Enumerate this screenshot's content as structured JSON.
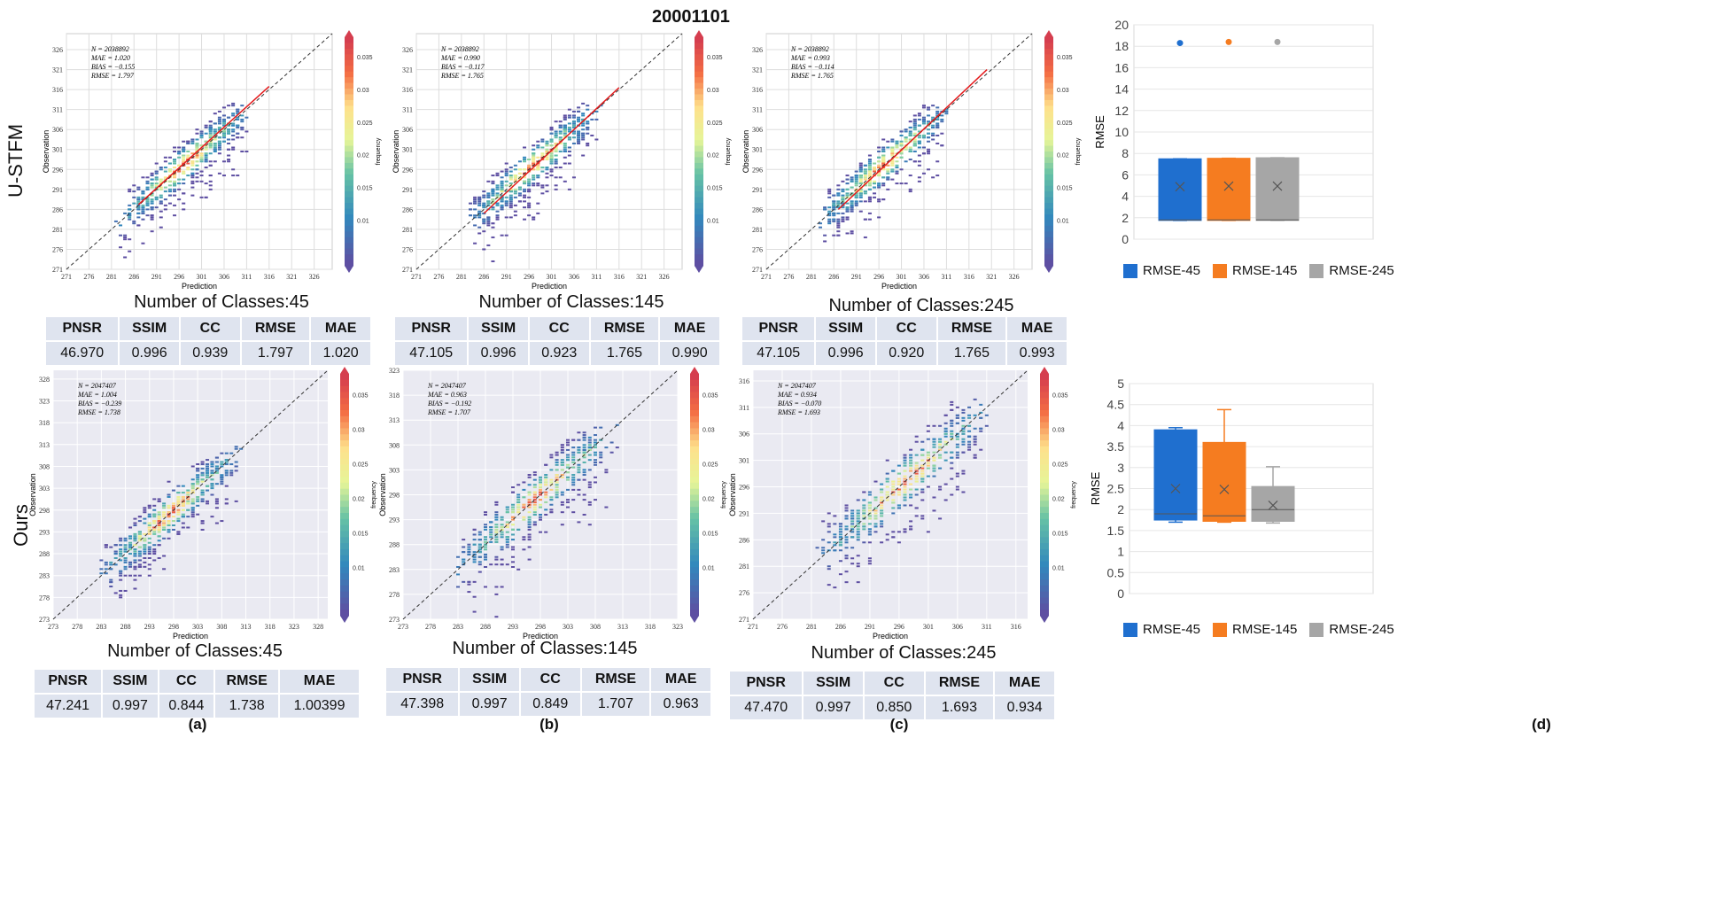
{
  "title": "20001101",
  "rows": [
    "U-STFM",
    "Ours"
  ],
  "panel_labels": [
    "(a)",
    "(b)",
    "(c)",
    "(d)"
  ],
  "metric_headers": [
    "PNSR",
    "SSIM",
    "CC",
    "RMSE",
    "MAE"
  ],
  "colorbar": {
    "label": "frequency",
    "ticks": [
      "0.01",
      "0.015",
      "0.02",
      "0.025",
      "0.03",
      "0.035"
    ]
  },
  "scatter_axes": {
    "xlabel": "Prediction",
    "ylabel": "Observation"
  },
  "colors": {
    "blue": "#1f6fcf",
    "orange": "#f57c20",
    "gray": "#a6a6a6",
    "table_bg": "#dfe4ef"
  },
  "scatter_panels": [
    {
      "id": "ustfm-45",
      "class_title": "Number of Classes:45",
      "n": "N = 2038892",
      "mae": "MAE = 1.020",
      "bias": "BIAS = −0.155",
      "rmse": "RMSE = 1.797",
      "ticks": [
        "271",
        "276",
        "281",
        "286",
        "291",
        "296",
        "301",
        "306",
        "311",
        "316",
        "321",
        "326"
      ],
      "range": [
        271,
        330
      ],
      "fit": [
        [
          287,
          287.2
        ],
        [
          316,
          316.8
        ]
      ],
      "metrics": [
        "46.970",
        "0.996",
        "0.939",
        "1.797",
        "1.020"
      ]
    },
    {
      "id": "ustfm-145",
      "class_title": "Number of Classes:145",
      "n": "N = 2038892",
      "mae": "MAE = 0.990",
      "bias": "BIAS = −0.117",
      "rmse": "RMSE = 1.765",
      "ticks": [
        "271",
        "276",
        "281",
        "286",
        "291",
        "296",
        "301",
        "306",
        "311",
        "316",
        "321",
        "326"
      ],
      "range": [
        271,
        330
      ],
      "fit": [
        [
          286,
          285.0
        ],
        [
          316,
          316.5
        ]
      ],
      "metrics": [
        "47.105",
        "0.996",
        "0.923",
        "1.765",
        "0.990"
      ]
    },
    {
      "id": "ustfm-245",
      "class_title": "Number of Classes:245",
      "n": "N = 2038892",
      "mae": "MAE = 0.993",
      "bias": "BIAS = −0.114",
      "rmse": "RMSE = 1.765",
      "ticks": [
        "271",
        "276",
        "281",
        "286",
        "291",
        "296",
        "301",
        "306",
        "311",
        "316",
        "321",
        "326"
      ],
      "range": [
        271,
        330
      ],
      "fit": [
        [
          287,
          286.0
        ],
        [
          320,
          321.0
        ]
      ],
      "metrics": [
        "47.105",
        "0.996",
        "0.920",
        "1.765",
        "0.993"
      ]
    },
    {
      "id": "ours-45",
      "class_title": "Number of Classes:45",
      "n": "N = 2047407",
      "mae": "MAE = 1.004",
      "bias": "BIAS = −0.239",
      "rmse": "RMSE = 1.738",
      "ticks": [
        "273",
        "278",
        "283",
        "288",
        "293",
        "298",
        "303",
        "308",
        "313",
        "318",
        "323",
        "328"
      ],
      "range": [
        273,
        330
      ],
      "fit": null,
      "metrics": [
        "47.241",
        "0.997",
        "0.844",
        "1.738",
        "1.00399"
      ]
    },
    {
      "id": "ours-145",
      "class_title": "Number of Classes:145",
      "n": "N = 2047407",
      "mae": "MAE = 0.963",
      "bias": "BIAS = −0.192",
      "rmse": "RMSE = 1.707",
      "ticks": [
        "273",
        "278",
        "283",
        "288",
        "293",
        "298",
        "303",
        "308",
        "313",
        "318",
        "323"
      ],
      "range": [
        273,
        323
      ],
      "fit": null,
      "metrics": [
        "47.398",
        "0.997",
        "0.849",
        "1.707",
        "0.963"
      ]
    },
    {
      "id": "ours-245",
      "class_title": "Number of Classes:245",
      "n": "N = 2047407",
      "mae": "MAE = 0.934",
      "bias": "BIAS = −0.070",
      "rmse": "RMSE = 1.693",
      "ticks": [
        "271",
        "276",
        "281",
        "286",
        "291",
        "296",
        "301",
        "306",
        "311",
        "316"
      ],
      "range": [
        271,
        318
      ],
      "fit": null,
      "metrics": [
        "47.470",
        "0.997",
        "0.850",
        "1.693",
        "0.934"
      ]
    }
  ],
  "chart_data": [
    {
      "type": "box",
      "ylabel": "RMSE",
      "ylim": [
        0,
        20
      ],
      "yticks": [
        0,
        2,
        4,
        6,
        8,
        10,
        12,
        14,
        16,
        18,
        20
      ],
      "legend": "bottom",
      "series": [
        {
          "name": "RMSE-45",
          "min": 1.75,
          "q1": 1.75,
          "median": 1.8,
          "q3": 7.5,
          "max": 7.5,
          "mean": 4.9,
          "outliers": [
            18.3
          ]
        },
        {
          "name": "RMSE-145",
          "min": 1.75,
          "q1": 1.75,
          "median": 1.8,
          "q3": 7.55,
          "max": 7.55,
          "mean": 4.95,
          "outliers": [
            18.4
          ]
        },
        {
          "name": "RMSE-245",
          "min": 1.75,
          "q1": 1.75,
          "median": 1.8,
          "q3": 7.6,
          "max": 7.6,
          "mean": 4.95,
          "outliers": [
            18.4
          ]
        }
      ]
    },
    {
      "type": "box",
      "ylabel": "RMSE",
      "ylim": [
        0,
        5
      ],
      "yticks": [
        0,
        0.5,
        1,
        1.5,
        2,
        2.5,
        3,
        3.5,
        4,
        4.5,
        5
      ],
      "legend": "bottom",
      "series": [
        {
          "name": "RMSE-45",
          "min": 1.7,
          "q1": 1.75,
          "median": 1.9,
          "q3": 3.9,
          "max": 3.95,
          "mean": 2.5,
          "outliers": []
        },
        {
          "name": "RMSE-145",
          "min": 1.7,
          "q1": 1.72,
          "median": 1.85,
          "q3": 3.6,
          "max": 4.38,
          "mean": 2.48,
          "outliers": []
        },
        {
          "name": "RMSE-245",
          "min": 1.68,
          "q1": 1.72,
          "median": 2.0,
          "q3": 2.55,
          "max": 3.02,
          "mean": 2.1,
          "outliers": []
        }
      ]
    }
  ]
}
